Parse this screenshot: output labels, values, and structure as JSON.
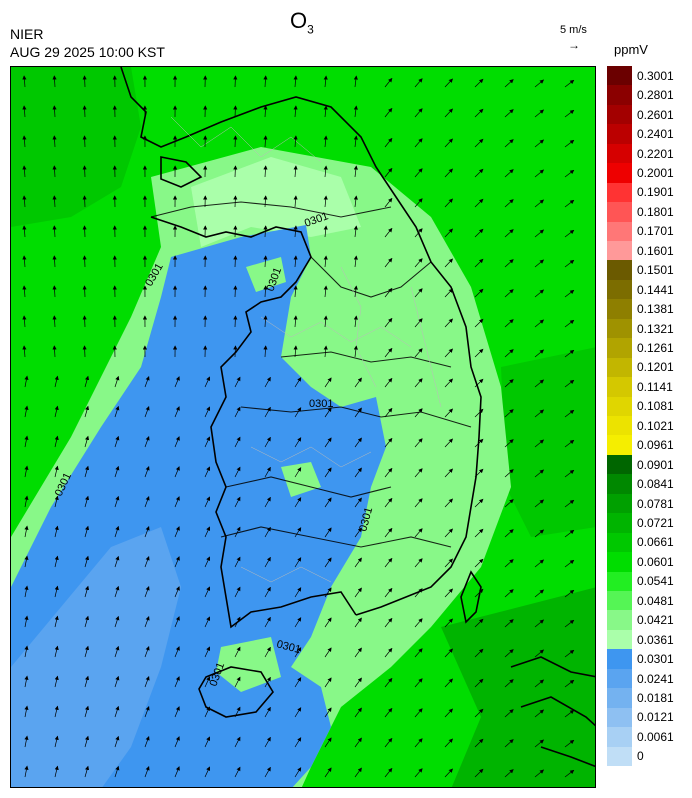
{
  "header": {
    "title_main": "O",
    "title_sub": "3",
    "org": "NIER",
    "timestamp": "AUG 29 2025 10:00 KST",
    "wind_reference": "5 m/s",
    "wind_reference_arrow": "→",
    "unit": "ppmV"
  },
  "legend": {
    "labels": [
      "0.3001",
      "0.2801",
      "0.2601",
      "0.2401",
      "0.2201",
      "0.2001",
      "0.1901",
      "0.1801",
      "0.1701",
      "0.1601",
      "0.1501",
      "0.1441",
      "0.1381",
      "0.1321",
      "0.1261",
      "0.1201",
      "0.1141",
      "0.1081",
      "0.1021",
      "0.0961",
      "0.0901",
      "0.0841",
      "0.0781",
      "0.0721",
      "0.0661",
      "0.0601",
      "0.0541",
      "0.0481",
      "0.0421",
      "0.0361",
      "0.0301",
      "0.0241",
      "0.0181",
      "0.0121",
      "0.0061",
      "0"
    ],
    "colors": [
      "#6b0000",
      "#8b0000",
      "#a30000",
      "#bb0000",
      "#d60000",
      "#ee0000",
      "#ff3333",
      "#ff5555",
      "#ff7777",
      "#ff9999",
      "#6b5a00",
      "#7c6d00",
      "#8e7f00",
      "#9f9200",
      "#b1a400",
      "#c2b600",
      "#d4c800",
      "#e0d600",
      "#ece300",
      "#f5ee00",
      "#006600",
      "#008800",
      "#00a000",
      "#00b400",
      "#00c800",
      "#00dd00",
      "#22ee22",
      "#55f555",
      "#88f888",
      "#aaffaa",
      "#3e96f0",
      "#5aa4f0",
      "#74b2f0",
      "#8ec0f2",
      "#a8d0f4",
      "#c0def6"
    ]
  },
  "map": {
    "isoline_labels": [
      "0301",
      "0301",
      "0301",
      "0301",
      "0301",
      "0301",
      "0301",
      "0301"
    ]
  }
}
